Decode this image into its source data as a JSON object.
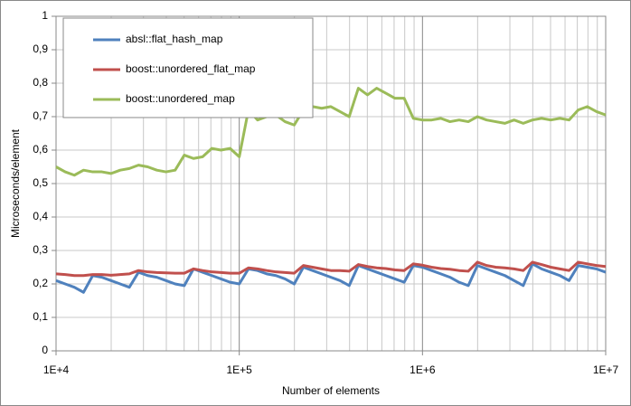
{
  "chart_data": {
    "type": "line",
    "xlabel": "Number of elements",
    "ylabel": "Microseconds/element",
    "xscale": "log",
    "grid": true,
    "legend": "upper left",
    "xlim": [
      10000,
      10000000
    ],
    "xticks": [
      {
        "value": 10000,
        "label": "1E+4"
      },
      {
        "value": 100000,
        "label": "1E+5"
      },
      {
        "value": 1000000,
        "label": "1E+6"
      },
      {
        "value": 10000000,
        "label": "1E+7"
      }
    ],
    "xminorticks": [
      20000,
      30000,
      40000,
      50000,
      60000,
      70000,
      80000,
      90000,
      200000,
      300000,
      400000,
      500000,
      600000,
      700000,
      800000,
      900000,
      2000000,
      3000000,
      4000000,
      5000000,
      6000000,
      7000000,
      8000000,
      9000000
    ],
    "ylim": [
      0,
      1
    ],
    "yticks": [
      0,
      {
        "value": 0.1,
        "label": "0,1"
      },
      {
        "value": 0.2,
        "label": "0,2"
      },
      {
        "value": 0.3,
        "label": "0,3"
      },
      {
        "value": 0.4,
        "label": "0,4"
      },
      {
        "value": 0.5,
        "label": "0,5"
      },
      {
        "value": 0.6,
        "label": "0,6"
      },
      {
        "value": 0.7,
        "label": "0,7"
      },
      {
        "value": 0.8,
        "label": "0,8"
      },
      {
        "value": 0.9,
        "label": "0,9"
      },
      1
    ],
    "x": [
      10000,
      11220,
      12589,
      14125,
      15849,
      17783,
      19953,
      22387,
      25119,
      28184,
      31623,
      35481,
      39811,
      44668,
      50119,
      56234,
      63096,
      70795,
      79433,
      89125,
      100000,
      112202,
      125893,
      141254,
      158489,
      177828,
      199526,
      223872,
      251189,
      281838,
      316228,
      354813,
      398107,
      446684,
      501187,
      562341,
      630957,
      707946,
      794328,
      891251,
      1000000,
      1122018,
      1258925,
      1412538,
      1584893,
      1778279,
      1995262,
      2238721,
      2511886,
      2818383,
      3162278,
      3548134,
      3981072,
      4466836,
      5011872,
      5623413,
      6309573,
      7079458,
      7943282,
      8912509,
      10000000
    ],
    "series": [
      {
        "name": "absl::flat_hash_map",
        "color": "#4f81bd",
        "values": [
          0.21,
          0.2,
          0.19,
          0.175,
          0.225,
          0.22,
          0.21,
          0.2,
          0.19,
          0.235,
          0.225,
          0.22,
          0.21,
          0.2,
          0.195,
          0.245,
          0.235,
          0.225,
          0.215,
          0.205,
          0.2,
          0.245,
          0.24,
          0.23,
          0.225,
          0.215,
          0.2,
          0.25,
          0.24,
          0.23,
          0.22,
          0.21,
          0.195,
          0.255,
          0.245,
          0.235,
          0.225,
          0.215,
          0.205,
          0.255,
          0.25,
          0.24,
          0.23,
          0.22,
          0.205,
          0.195,
          0.255,
          0.245,
          0.235,
          0.225,
          0.21,
          0.195,
          0.26,
          0.245,
          0.235,
          0.225,
          0.21,
          0.255,
          0.25,
          0.245,
          0.235
        ]
      },
      {
        "name": "boost::unordered_flat_map",
        "color": "#c0504d",
        "values": [
          0.23,
          0.228,
          0.225,
          0.225,
          0.228,
          0.228,
          0.226,
          0.228,
          0.23,
          0.24,
          0.236,
          0.234,
          0.233,
          0.232,
          0.232,
          0.245,
          0.24,
          0.236,
          0.234,
          0.232,
          0.232,
          0.248,
          0.245,
          0.24,
          0.236,
          0.234,
          0.232,
          0.255,
          0.25,
          0.245,
          0.24,
          0.24,
          0.238,
          0.258,
          0.252,
          0.248,
          0.246,
          0.242,
          0.24,
          0.26,
          0.256,
          0.25,
          0.246,
          0.244,
          0.24,
          0.238,
          0.265,
          0.255,
          0.25,
          0.248,
          0.245,
          0.24,
          0.265,
          0.258,
          0.25,
          0.245,
          0.24,
          0.265,
          0.26,
          0.255,
          0.252
        ]
      },
      {
        "name": "boost::unordered_map",
        "color": "#9bbb59",
        "values": [
          0.55,
          0.535,
          0.525,
          0.54,
          0.535,
          0.535,
          0.53,
          0.54,
          0.545,
          0.555,
          0.55,
          0.54,
          0.535,
          0.54,
          0.585,
          0.575,
          0.58,
          0.605,
          0.6,
          0.605,
          0.58,
          0.72,
          0.69,
          0.7,
          0.705,
          0.685,
          0.675,
          0.72,
          0.73,
          0.725,
          0.73,
          0.715,
          0.7,
          0.785,
          0.765,
          0.785,
          0.77,
          0.755,
          0.755,
          0.695,
          0.69,
          0.69,
          0.695,
          0.685,
          0.69,
          0.685,
          0.7,
          0.69,
          0.685,
          0.68,
          0.69,
          0.68,
          0.69,
          0.695,
          0.69,
          0.695,
          0.69,
          0.72,
          0.73,
          0.715,
          0.705
        ]
      }
    ]
  }
}
